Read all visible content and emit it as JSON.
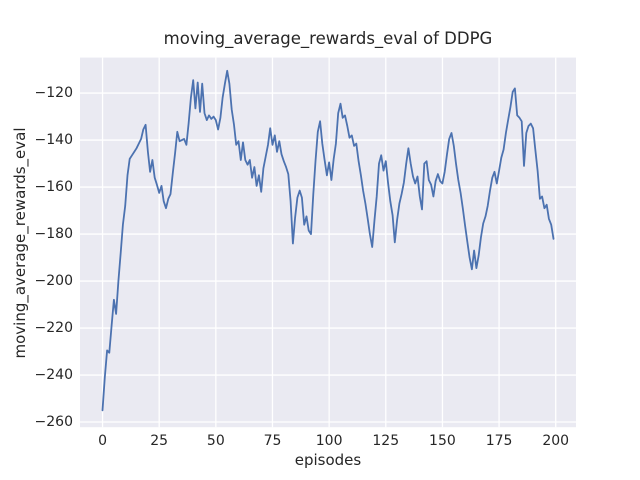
{
  "chart_data": {
    "type": "line",
    "title": "moving_average_rewards_eval of DDPG",
    "xlabel": "episodes",
    "ylabel": "moving_average_rewards_eval",
    "x_ticks": [
      0,
      25,
      50,
      75,
      100,
      125,
      150,
      175,
      200
    ],
    "y_ticks": [
      -260,
      -240,
      -220,
      -200,
      -180,
      -160,
      -140,
      -120
    ],
    "xlim": [
      -9.95,
      208.95
    ],
    "ylim": [
      -262.2,
      -104.9
    ],
    "grid": true,
    "legend": false,
    "style": "seaborn-darkgrid",
    "plot_bg": "#eaeaf2",
    "grid_color": "#ffffff",
    "line_color": "#4c72b0",
    "text_color": "#262626",
    "series": [
      {
        "name": "moving_average_rewards_eval",
        "x_start": 0,
        "x_step": 1,
        "values": [
          -255,
          -241,
          -229.5,
          -230.5,
          -219,
          -208,
          -214,
          -200,
          -188,
          -176,
          -168,
          -155,
          -148,
          -146.5,
          -145,
          -143.5,
          -141.5,
          -139.5,
          -135.5,
          -133.5,
          -145,
          -153.5,
          -148.5,
          -156,
          -159,
          -162.5,
          -159.5,
          -166,
          -169,
          -165,
          -163,
          -154,
          -145.5,
          -136.5,
          -140.5,
          -140,
          -139.5,
          -142,
          -133,
          -122,
          -114.5,
          -126.5,
          -115.5,
          -128,
          -116,
          -128.5,
          -131.5,
          -129.5,
          -131,
          -130,
          -131.5,
          -135.5,
          -130.5,
          -122,
          -116,
          -110.5,
          -116,
          -127,
          -133.5,
          -142,
          -140.5,
          -148.5,
          -141,
          -148.5,
          -150.5,
          -148.5,
          -156,
          -151.5,
          -159.5,
          -155,
          -162,
          -152,
          -147,
          -142,
          -135,
          -142,
          -138,
          -145,
          -140.5,
          -146,
          -149,
          -151.5,
          -154.5,
          -166,
          -184,
          -173,
          -164.5,
          -161.5,
          -164.5,
          -176,
          -172.5,
          -178.5,
          -180,
          -163,
          -149,
          -136.5,
          -132,
          -141.5,
          -148.5,
          -155,
          -149.5,
          -157,
          -148,
          -141.5,
          -128.5,
          -124.5,
          -130.5,
          -129.5,
          -134,
          -139,
          -138,
          -142.5,
          -141.5,
          -149,
          -155,
          -161.5,
          -167,
          -173.5,
          -180,
          -185.5,
          -174,
          -164,
          -150,
          -146.5,
          -153,
          -149,
          -158,
          -166,
          -172,
          -183.5,
          -174,
          -167,
          -163,
          -158,
          -150,
          -143.5,
          -150,
          -155.5,
          -158.5,
          -155.5,
          -164,
          -169.5,
          -150,
          -149,
          -157,
          -159,
          -164,
          -157.5,
          -154.5,
          -157.5,
          -158.5,
          -153.5,
          -146,
          -139.5,
          -137,
          -142.5,
          -150,
          -157,
          -162.5,
          -169,
          -176.5,
          -183.5,
          -190,
          -195,
          -187,
          -194.5,
          -189,
          -181.5,
          -175.5,
          -172.5,
          -168,
          -161.5,
          -156,
          -153.5,
          -158.5,
          -153,
          -147.5,
          -144,
          -137,
          -131.5,
          -126,
          -119.5,
          -118,
          -129.5,
          -130.5,
          -132,
          -151,
          -137,
          -134,
          -133,
          -135,
          -144,
          -153,
          -165,
          -164,
          -169,
          -167.5,
          -173.5,
          -176,
          -182
        ]
      }
    ]
  }
}
